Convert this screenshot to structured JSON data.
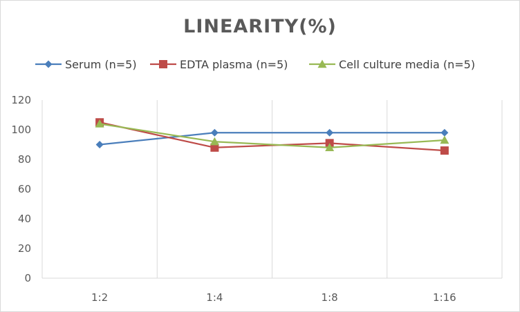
{
  "chart_data": {
    "type": "line",
    "title": "LINEARITY(%)",
    "xlabel": "",
    "ylabel": "",
    "categories": [
      "1:2",
      "1:4",
      "1:8",
      "1:16"
    ],
    "ylim": [
      0,
      120
    ],
    "yticks": [
      0,
      20,
      40,
      60,
      80,
      100,
      120
    ],
    "grid": "vertical",
    "legend": "top",
    "series": [
      {
        "name": "Serum (n=5)",
        "values": [
          90,
          98,
          98,
          98
        ],
        "color": "#4a7ebb",
        "marker": "diamond"
      },
      {
        "name": "EDTA plasma (n=5)",
        "values": [
          105,
          88,
          91,
          86
        ],
        "color": "#be4b48",
        "marker": "square"
      },
      {
        "name": "Cell culture media (n=5)",
        "values": [
          104,
          92,
          88,
          93
        ],
        "color": "#98b954",
        "marker": "triangle"
      }
    ]
  }
}
